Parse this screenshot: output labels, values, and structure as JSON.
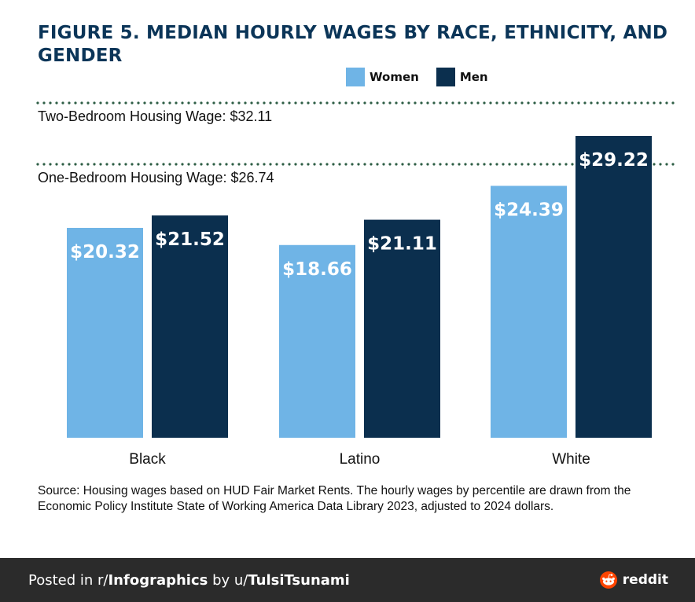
{
  "title": "FIGURE 5. MEDIAN HOURLY WAGES BY RACE, ETHNICITY, AND GENDER",
  "legend": {
    "women": "Women",
    "men": "Men"
  },
  "colors": {
    "women": "#6fb4e6",
    "men": "#0b2f4e",
    "title": "#0b3558",
    "reference_line": "#2e5e45"
  },
  "chart_data": {
    "type": "bar",
    "categories": [
      "Black",
      "Latino",
      "White"
    ],
    "series": [
      {
        "name": "Women",
        "values": [
          20.32,
          18.66,
          24.39
        ],
        "labels": [
          "$20.32",
          "$18.66",
          "$24.39"
        ]
      },
      {
        "name": "Men",
        "values": [
          21.52,
          21.11,
          29.22
        ],
        "labels": [
          "$21.52",
          "$21.11",
          "$29.22"
        ]
      }
    ],
    "reference_lines": [
      {
        "label": "Two-Bedroom Housing Wage: $32.11",
        "value": 32.11
      },
      {
        "label": "One-Bedroom Housing Wage: $26.74",
        "value": 26.74
      }
    ],
    "ylim": [
      0,
      29.22
    ],
    "xlabel": "",
    "ylabel": "",
    "legend_position": "top-right"
  },
  "source": "Source: Housing wages based on HUD Fair Market Rents. The hourly wages by percentile are drawn from the Economic Policy Institute State of Working America Data Library 2023, adjusted to 2024 dollars.",
  "footer": {
    "posted_prefix": "Posted in r/",
    "subreddit": "Infographics",
    "by_text": " by u/",
    "user": "TulsiTsunami",
    "brand": "reddit"
  }
}
